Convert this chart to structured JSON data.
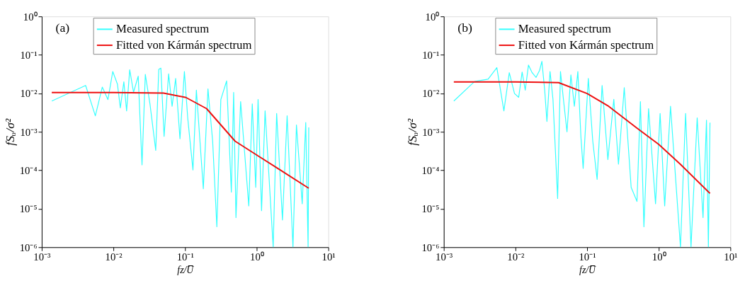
{
  "chart_data": [
    {
      "type": "line",
      "annotations": [
        "(a)"
      ],
      "xlabel": "fz/U̅",
      "ylabel": "fSᵤ/σ²",
      "log": "xy",
      "grid": false,
      "legend": "top right",
      "xlim": [
        0.001,
        10
      ],
      "ylim": [
        1e-06,
        1
      ],
      "xticks": [
        {
          "value": 0.001,
          "label": "10⁻³"
        },
        {
          "value": 0.01,
          "label": "10⁻²"
        },
        {
          "value": 0.1,
          "label": "10⁻¹"
        },
        {
          "value": 1,
          "label": "10⁰"
        },
        {
          "value": 10,
          "label": "10¹"
        }
      ],
      "yticks": [
        {
          "value": 1e-06,
          "label": "10⁻⁶"
        },
        {
          "value": 1e-05,
          "label": "10⁻⁵"
        },
        {
          "value": 0.0001,
          "label": "10⁻⁴"
        },
        {
          "value": 0.001,
          "label": "10⁻³"
        },
        {
          "value": 0.01,
          "label": "10⁻²"
        },
        {
          "value": 0.1,
          "label": "10⁻¹"
        },
        {
          "value": 1,
          "label": "10⁰"
        }
      ],
      "series": [
        {
          "name": "Measured spectrum",
          "color": "#33ffff",
          "x": [
            0.00138,
            0.0041,
            0.0056,
            0.007,
            0.0084,
            0.0098,
            0.0114,
            0.0125,
            0.014,
            0.0153,
            0.0169,
            0.0191,
            0.0222,
            0.0251,
            0.0279,
            0.0324,
            0.039,
            0.043,
            0.046,
            0.051,
            0.059,
            0.066,
            0.074,
            0.085,
            0.098,
            0.109,
            0.129,
            0.144,
            0.18,
            0.209,
            0.243,
            0.278,
            0.316,
            0.381,
            0.443,
            0.477,
            0.514,
            0.597,
            0.776,
            0.868,
            0.97,
            1.046,
            1.17,
            1.31,
            1.7,
            1.9,
            2.29,
            2.66,
            3.21,
            3.59,
            4.32,
            4.84,
            5.22,
            5.33
          ],
          "values": [
            0.0063,
            0.016,
            0.0026,
            0.0145,
            0.0069,
            0.037,
            0.0172,
            0.0042,
            0.02,
            0.0035,
            0.041,
            0.0106,
            0.028,
            0.000138,
            0.031,
            0.0053,
            0.00033,
            0.042,
            0.045,
            0.00076,
            0.032,
            0.0046,
            0.0243,
            0.00066,
            0.037,
            0.0023,
            0.000102,
            0.0121,
            3.3e-05,
            0.013,
            0.00057,
            3.4e-06,
            0.0069,
            0.0211,
            2.7e-05,
            0.0106,
            5.9e-06,
            0.0061,
            1.18e-05,
            0.0053,
            3.6e-05,
            0.0069,
            8.9e-06,
            0.0035,
            1e-06,
            0.003,
            5.1e-06,
            0.0026,
            1e-06,
            0.0015,
            1.35e-05,
            0.00174,
            1e-06,
            0.0013
          ]
        },
        {
          "name": "Fitted von Kármán spectrum",
          "color": "#ee1111",
          "x": [
            0.00138,
            0.01,
            0.05,
            0.103,
            0.2,
            0.5,
            1,
            2,
            5.33
          ],
          "values": [
            0.0105,
            0.0105,
            0.0102,
            0.0078,
            0.004,
            0.00057,
            0.00025,
            0.00011,
            3.4e-05
          ]
        }
      ]
    },
    {
      "type": "line",
      "annotations": [
        "(b)"
      ],
      "xlabel": "fz/U̅",
      "ylabel": "fSᵤ/σ²",
      "log": "xy",
      "grid": false,
      "legend": "top right",
      "xlim": [
        0.001,
        10
      ],
      "ylim": [
        1e-06,
        1
      ],
      "xticks": [
        {
          "value": 0.001,
          "label": "10⁻³"
        },
        {
          "value": 0.01,
          "label": "10⁻²"
        },
        {
          "value": 0.1,
          "label": "10⁻¹"
        },
        {
          "value": 1,
          "label": "10⁰"
        },
        {
          "value": 10,
          "label": "10¹"
        }
      ],
      "yticks": [
        {
          "value": 1e-06,
          "label": "10⁻⁶"
        },
        {
          "value": 1e-05,
          "label": "10⁻⁵"
        },
        {
          "value": 0.0001,
          "label": "10⁻⁴"
        },
        {
          "value": 0.001,
          "label": "10⁻³"
        },
        {
          "value": 0.01,
          "label": "10⁻²"
        },
        {
          "value": 0.1,
          "label": "10⁻¹"
        },
        {
          "value": 1,
          "label": "10⁰"
        }
      ],
      "series": [
        {
          "name": "Measured spectrum",
          "color": "#33ffff",
          "x": [
            0.00138,
            0.00269,
            0.00415,
            0.0055,
            0.0069,
            0.0082,
            0.0097,
            0.0111,
            0.0124,
            0.0137,
            0.0152,
            0.0171,
            0.0194,
            0.0217,
            0.0234,
            0.0256,
            0.0275,
            0.0304,
            0.0334,
            0.0388,
            0.0425,
            0.0475,
            0.0524,
            0.0594,
            0.0664,
            0.0743,
            0.0819,
            0.0881,
            0.104,
            0.12,
            0.138,
            0.162,
            0.195,
            0.236,
            0.274,
            0.33,
            0.412,
            0.497,
            0.555,
            0.621,
            0.721,
            0.902,
            1.045,
            1.21,
            1.46,
            2.01,
            2.37,
            2.82,
            3.44,
            4.15,
            4.64,
            4.93,
            5.19
          ],
          "values": [
            0.0063,
            0.0203,
            0.0233,
            0.0466,
            0.0035,
            0.0344,
            0.0099,
            0.0079,
            0.0358,
            0.0121,
            0.0543,
            0.0344,
            0.026,
            0.0394,
            0.0678,
            0.0121,
            0.00186,
            0.037,
            0.007,
            1.85e-05,
            0.037,
            0.0053,
            0.001,
            0.03,
            0.0046,
            0.037,
            0.00076,
            0.000112,
            0.0243,
            0.00057,
            5.8e-05,
            0.016,
            0.00019,
            0.007,
            0.000144,
            0.014,
            3.6e-05,
            1.55e-05,
            0.0061,
            3.4e-06,
            0.004,
            1.35e-05,
            0.003,
            1.18e-05,
            0.0046,
            1e-06,
            0.003,
            1e-06,
            0.0023,
            5.9e-06,
            0.002,
            1e-06,
            0.00174
          ]
        },
        {
          "name": "Fitted von Kármán spectrum",
          "color": "#ee1111",
          "x": [
            0.00138,
            0.01,
            0.04,
            0.1,
            0.2,
            0.5,
            1,
            2,
            5.19
          ],
          "values": [
            0.0198,
            0.0198,
            0.019,
            0.0099,
            0.0046,
            0.00123,
            0.00047,
            0.000144,
            2.5e-05
          ]
        }
      ]
    }
  ]
}
